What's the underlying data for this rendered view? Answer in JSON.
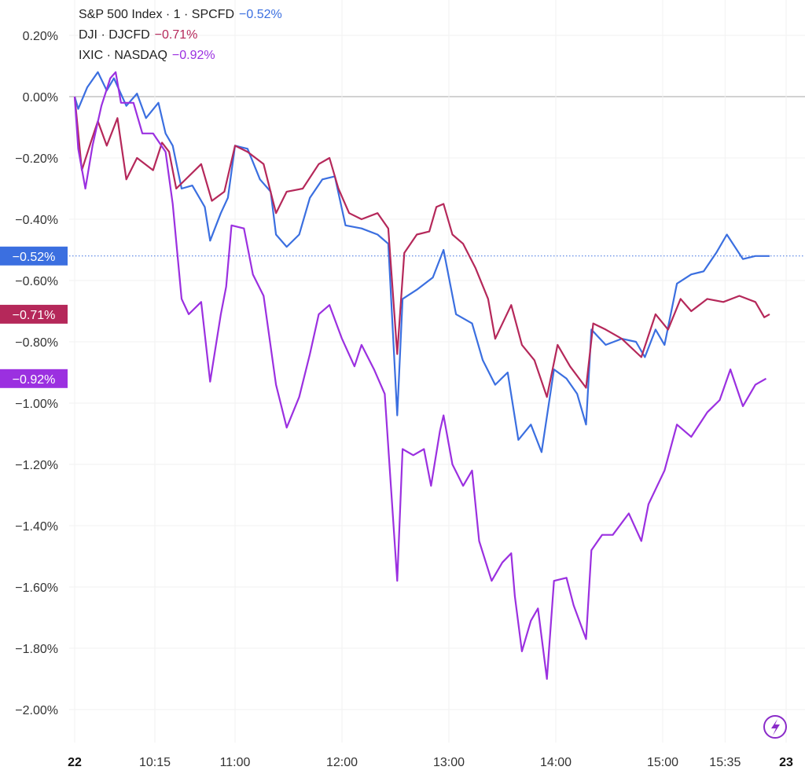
{
  "chart_data": {
    "type": "line",
    "title": "",
    "xlabel": "",
    "ylabel": "",
    "ylim": [
      -2.1,
      0.3
    ],
    "y_ticks": [
      "0.20%",
      "0.00%",
      "−0.20%",
      "−0.40%",
      "−0.60%",
      "−0.80%",
      "−1.00%",
      "−1.20%",
      "−1.40%",
      "−1.60%",
      "−1.80%",
      "−2.00%"
    ],
    "y_tick_values": [
      0.2,
      0,
      -0.2,
      -0.4,
      -0.6,
      -0.8,
      -1.0,
      -1.2,
      -1.4,
      -1.6,
      -1.8,
      -2.0
    ],
    "x_ticks": [
      {
        "label": "22",
        "time": "09:30",
        "bold": true
      },
      {
        "label": "10:15",
        "time": "10:15"
      },
      {
        "label": "11:00",
        "time": "11:00"
      },
      {
        "label": "12:00",
        "time": "12:00"
      },
      {
        "label": "13:00",
        "time": "13:00"
      },
      {
        "label": "14:00",
        "time": "14:00"
      },
      {
        "label": "15:00",
        "time": "15:00"
      },
      {
        "label": "15:35",
        "time": "15:35"
      },
      {
        "label": "23",
        "time": "16:09",
        "bold": true
      }
    ],
    "grid": true,
    "legend_position": "top-left",
    "series": [
      {
        "name": "S&P 500 Index · 1 · SPCFD",
        "last_label": "−0.52%",
        "last_value": -0.52,
        "color": "#3b6fe0",
        "price_line": true,
        "points": [
          [
            "09:30",
            0.0
          ],
          [
            "09:32",
            -0.04
          ],
          [
            "09:37",
            0.03
          ],
          [
            "09:43",
            0.08
          ],
          [
            "09:48",
            0.02
          ],
          [
            "09:52",
            0.06
          ],
          [
            "09:59",
            -0.03
          ],
          [
            "10:05",
            0.01
          ],
          [
            "10:10",
            -0.07
          ],
          [
            "10:17",
            -0.02
          ],
          [
            "10:21",
            -0.12
          ],
          [
            "10:25",
            -0.16
          ],
          [
            "10:30",
            -0.3
          ],
          [
            "10:36",
            -0.29
          ],
          [
            "10:43",
            -0.36
          ],
          [
            "10:46",
            -0.47
          ],
          [
            "10:52",
            -0.38
          ],
          [
            "10:56",
            -0.33
          ],
          [
            "11:00",
            -0.16
          ],
          [
            "11:07",
            -0.17
          ],
          [
            "11:14",
            -0.27
          ],
          [
            "11:20",
            -0.31
          ],
          [
            "11:23",
            -0.45
          ],
          [
            "11:29",
            -0.49
          ],
          [
            "11:36",
            -0.45
          ],
          [
            "11:42",
            -0.33
          ],
          [
            "11:49",
            -0.27
          ],
          [
            "11:56",
            -0.26
          ],
          [
            "12:02",
            -0.42
          ],
          [
            "12:11",
            -0.43
          ],
          [
            "12:20",
            -0.45
          ],
          [
            "12:26",
            -0.48
          ],
          [
            "12:31",
            -1.04
          ],
          [
            "12:34",
            -0.66
          ],
          [
            "12:42",
            -0.63
          ],
          [
            "12:51",
            -0.59
          ],
          [
            "12:57",
            -0.5
          ],
          [
            "13:04",
            -0.71
          ],
          [
            "13:13",
            -0.74
          ],
          [
            "13:19",
            -0.86
          ],
          [
            "13:26",
            -0.94
          ],
          [
            "13:33",
            -0.9
          ],
          [
            "13:39",
            -1.12
          ],
          [
            "13:46",
            -1.07
          ],
          [
            "13:52",
            -1.16
          ],
          [
            "13:59",
            -0.89
          ],
          [
            "14:06",
            -0.92
          ],
          [
            "14:12",
            -0.97
          ],
          [
            "14:17",
            -1.07
          ],
          [
            "14:20",
            -0.76
          ],
          [
            "14:28",
            -0.81
          ],
          [
            "14:37",
            -0.79
          ],
          [
            "14:45",
            -0.8
          ],
          [
            "14:50",
            -0.85
          ],
          [
            "14:56",
            -0.76
          ],
          [
            "15:01",
            -0.81
          ],
          [
            "15:08",
            -0.61
          ],
          [
            "15:16",
            -0.58
          ],
          [
            "15:23",
            -0.57
          ],
          [
            "15:30",
            -0.51
          ],
          [
            "15:36",
            -0.45
          ],
          [
            "15:45",
            -0.53
          ],
          [
            "15:52",
            -0.52
          ],
          [
            "16:00",
            -0.52
          ]
        ]
      },
      {
        "name": "DJI · DJCFD",
        "last_label": "−0.71%",
        "last_value": -0.71,
        "color": "#b5285a",
        "points": [
          [
            "09:30",
            0.0
          ],
          [
            "09:34",
            -0.24
          ],
          [
            "09:39",
            -0.15
          ],
          [
            "09:43",
            -0.08
          ],
          [
            "09:48",
            -0.16
          ],
          [
            "09:54",
            -0.07
          ],
          [
            "09:59",
            -0.27
          ],
          [
            "10:05",
            -0.2
          ],
          [
            "10:14",
            -0.24
          ],
          [
            "10:19",
            -0.15
          ],
          [
            "10:23",
            -0.18
          ],
          [
            "10:27",
            -0.3
          ],
          [
            "10:34",
            -0.26
          ],
          [
            "10:41",
            -0.22
          ],
          [
            "10:47",
            -0.34
          ],
          [
            "10:54",
            -0.31
          ],
          [
            "11:00",
            -0.16
          ],
          [
            "11:07",
            -0.18
          ],
          [
            "11:16",
            -0.22
          ],
          [
            "11:23",
            -0.38
          ],
          [
            "11:29",
            -0.31
          ],
          [
            "11:38",
            -0.3
          ],
          [
            "11:47",
            -0.22
          ],
          [
            "11:53",
            -0.2
          ],
          [
            "11:58",
            -0.3
          ],
          [
            "12:04",
            -0.38
          ],
          [
            "12:11",
            -0.4
          ],
          [
            "12:20",
            -0.38
          ],
          [
            "12:26",
            -0.43
          ],
          [
            "12:31",
            -0.84
          ],
          [
            "12:35",
            -0.51
          ],
          [
            "12:42",
            -0.45
          ],
          [
            "12:49",
            -0.44
          ],
          [
            "12:53",
            -0.36
          ],
          [
            "12:57",
            -0.35
          ],
          [
            "13:02",
            -0.45
          ],
          [
            "13:08",
            -0.48
          ],
          [
            "13:15",
            -0.56
          ],
          [
            "13:22",
            -0.66
          ],
          [
            "13:26",
            -0.79
          ],
          [
            "13:35",
            -0.68
          ],
          [
            "13:41",
            -0.81
          ],
          [
            "13:48",
            -0.86
          ],
          [
            "13:55",
            -0.98
          ],
          [
            "14:01",
            -0.81
          ],
          [
            "14:08",
            -0.88
          ],
          [
            "14:17",
            -0.95
          ],
          [
            "14:21",
            -0.74
          ],
          [
            "14:28",
            -0.76
          ],
          [
            "14:37",
            -0.79
          ],
          [
            "14:48",
            -0.85
          ],
          [
            "14:56",
            -0.71
          ],
          [
            "15:03",
            -0.76
          ],
          [
            "15:10",
            -0.66
          ],
          [
            "15:16",
            -0.7
          ],
          [
            "15:25",
            -0.66
          ],
          [
            "15:34",
            -0.67
          ],
          [
            "15:43",
            -0.65
          ],
          [
            "15:52",
            -0.67
          ],
          [
            "15:57",
            -0.72
          ],
          [
            "16:00",
            -0.71
          ]
        ]
      },
      {
        "name": "IXIC · NASDAQ",
        "last_label": "−0.92%",
        "last_value": -0.92,
        "color": "#9b30e0",
        "points": [
          [
            "09:30",
            0.0
          ],
          [
            "09:32",
            -0.17
          ],
          [
            "09:36",
            -0.3
          ],
          [
            "09:40",
            -0.16
          ],
          [
            "09:45",
            -0.03
          ],
          [
            "09:50",
            0.06
          ],
          [
            "09:53",
            0.08
          ],
          [
            "09:56",
            -0.02
          ],
          [
            "10:03",
            -0.02
          ],
          [
            "10:08",
            -0.12
          ],
          [
            "10:14",
            -0.12
          ],
          [
            "10:21",
            -0.18
          ],
          [
            "10:25",
            -0.35
          ],
          [
            "10:30",
            -0.66
          ],
          [
            "10:34",
            -0.71
          ],
          [
            "10:41",
            -0.67
          ],
          [
            "10:46",
            -0.93
          ],
          [
            "10:52",
            -0.71
          ],
          [
            "10:55",
            -0.62
          ],
          [
            "10:58",
            -0.42
          ],
          [
            "11:05",
            -0.43
          ],
          [
            "11:10",
            -0.58
          ],
          [
            "11:16",
            -0.65
          ],
          [
            "11:23",
            -0.94
          ],
          [
            "11:29",
            -1.08
          ],
          [
            "11:36",
            -0.98
          ],
          [
            "11:42",
            -0.84
          ],
          [
            "11:47",
            -0.71
          ],
          [
            "11:53",
            -0.68
          ],
          [
            "12:00",
            -0.79
          ],
          [
            "12:07",
            -0.88
          ],
          [
            "12:11",
            -0.81
          ],
          [
            "12:18",
            -0.89
          ],
          [
            "12:24",
            -0.97
          ],
          [
            "12:31",
            -1.58
          ],
          [
            "12:34",
            -1.15
          ],
          [
            "12:40",
            -1.17
          ],
          [
            "12:46",
            -1.15
          ],
          [
            "12:50",
            -1.27
          ],
          [
            "12:55",
            -1.09
          ],
          [
            "12:57",
            -1.04
          ],
          [
            "13:02",
            -1.2
          ],
          [
            "13:08",
            -1.27
          ],
          [
            "13:13",
            -1.22
          ],
          [
            "13:17",
            -1.45
          ],
          [
            "13:24",
            -1.58
          ],
          [
            "13:30",
            -1.52
          ],
          [
            "13:35",
            -1.49
          ],
          [
            "13:37",
            -1.63
          ],
          [
            "13:41",
            -1.81
          ],
          [
            "13:46",
            -1.71
          ],
          [
            "13:50",
            -1.67
          ],
          [
            "13:55",
            -1.9
          ],
          [
            "13:59",
            -1.58
          ],
          [
            "14:06",
            -1.57
          ],
          [
            "14:10",
            -1.66
          ],
          [
            "14:17",
            -1.77
          ],
          [
            "14:20",
            -1.48
          ],
          [
            "14:26",
            -1.43
          ],
          [
            "14:32",
            -1.43
          ],
          [
            "14:41",
            -1.36
          ],
          [
            "14:48",
            -1.45
          ],
          [
            "14:52",
            -1.33
          ],
          [
            "15:01",
            -1.22
          ],
          [
            "15:08",
            -1.07
          ],
          [
            "15:16",
            -1.11
          ],
          [
            "15:25",
            -1.03
          ],
          [
            "15:32",
            -0.99
          ],
          [
            "15:38",
            -0.89
          ],
          [
            "15:45",
            -1.01
          ],
          [
            "15:52",
            -0.94
          ],
          [
            "15:58",
            -0.92
          ]
        ]
      }
    ]
  },
  "legend": {
    "items": [
      {
        "name": "S&P 500 Index · 1 · SPCFD",
        "value": "−0.52%",
        "color": "#3b6fe0"
      },
      {
        "name": "DJI · DJCFD",
        "value": "−0.71%",
        "color": "#b5285a"
      },
      {
        "name": "IXIC · NASDAQ",
        "value": "−0.92%",
        "color": "#9b30e0"
      }
    ]
  },
  "icons": {
    "bottom_right": "lightning-bolt-icon"
  }
}
